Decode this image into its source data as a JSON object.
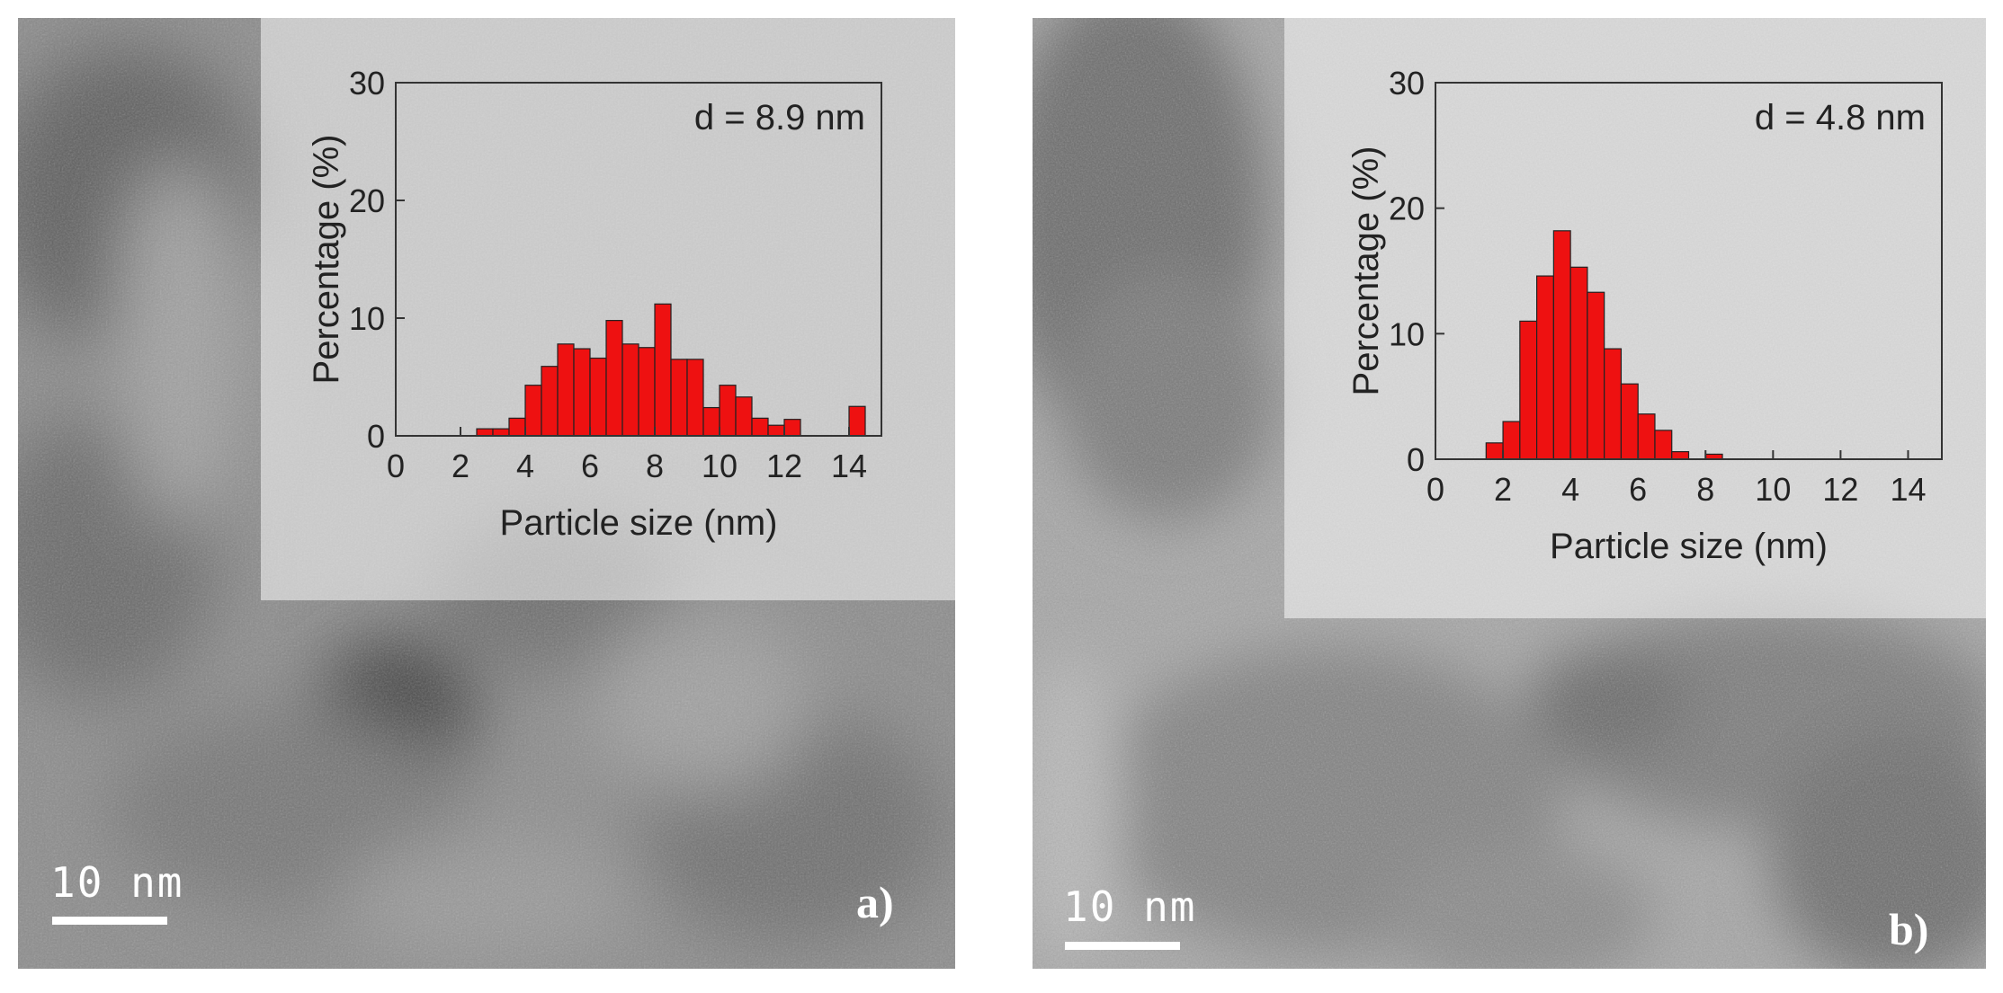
{
  "panels": [
    {
      "label": "a)",
      "scale_bar": "10 nm",
      "chart_data": {
        "type": "bar",
        "annotation": "d = 8.9 nm",
        "xlabel": "Particle size (nm)",
        "ylabel": "Percentage (%)",
        "xlim": [
          0,
          15
        ],
        "ylim": [
          0,
          30
        ],
        "xticks": [
          "0",
          "2",
          "4",
          "6",
          "8",
          "10",
          "12",
          "14"
        ],
        "yticks": [
          "0",
          "10",
          "20",
          "30"
        ],
        "bin_width": 0.5,
        "x": [
          2.5,
          3.0,
          3.5,
          4.0,
          4.5,
          5.0,
          5.5,
          6.0,
          6.5,
          7.0,
          7.5,
          8.0,
          8.5,
          9.0,
          9.5,
          10.0,
          10.5,
          11.0,
          11.5,
          12.0,
          14.0
        ],
        "values": [
          0.6,
          0.6,
          1.5,
          4.3,
          5.9,
          7.8,
          7.4,
          6.6,
          9.8,
          7.8,
          7.5,
          11.2,
          6.5,
          6.5,
          2.4,
          4.3,
          3.3,
          1.5,
          0.9,
          1.4,
          2.5
        ],
        "bar_color": "#ee1111"
      }
    },
    {
      "label": "b)",
      "scale_bar": "10 nm",
      "chart_data": {
        "type": "bar",
        "annotation": "d = 4.8 nm",
        "xlabel": "Particle size (nm)",
        "ylabel": "Percentage (%)",
        "xlim": [
          0,
          15
        ],
        "ylim": [
          0,
          30
        ],
        "xticks": [
          "0",
          "2",
          "4",
          "6",
          "8",
          "10",
          "12",
          "14"
        ],
        "yticks": [
          "0",
          "10",
          "20",
          "30"
        ],
        "bin_width": 0.5,
        "x": [
          1.5,
          2.0,
          2.5,
          3.0,
          3.5,
          4.0,
          4.5,
          5.0,
          5.5,
          6.0,
          6.5,
          7.0,
          8.0
        ],
        "values": [
          1.3,
          3.0,
          11.0,
          14.6,
          18.2,
          15.3,
          13.3,
          8.8,
          6.0,
          3.6,
          2.3,
          0.6,
          0.4
        ],
        "bar_color": "#ee1111"
      }
    }
  ]
}
